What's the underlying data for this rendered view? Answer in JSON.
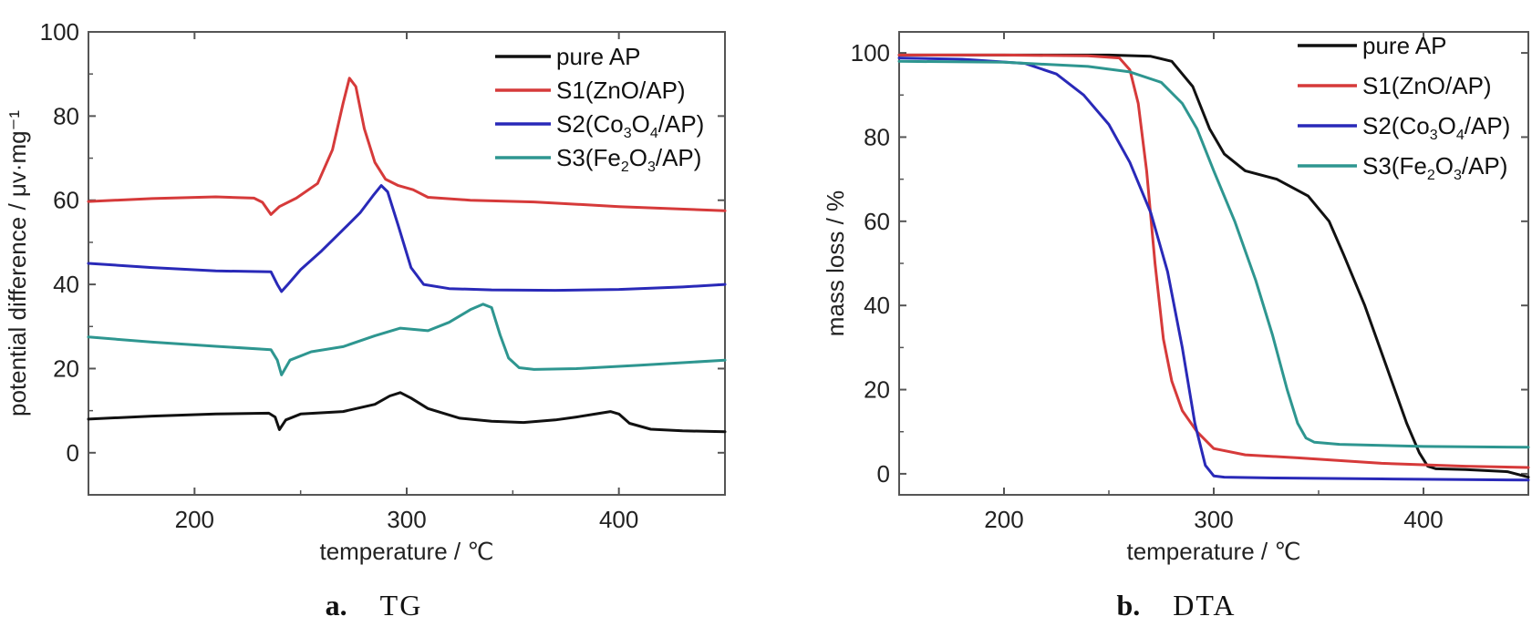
{
  "chart_data": [
    {
      "type": "line",
      "caption_letter": "a.",
      "caption_text": "TG",
      "xlabel": "temperature / ℃",
      "ylabel": "potential difference / μv·mg⁻¹",
      "xlim": [
        150,
        450
      ],
      "ylim": [
        -10,
        100
      ],
      "xticks": [
        200,
        300,
        400
      ],
      "yticks": [
        0,
        20,
        40,
        60,
        80,
        100
      ],
      "grid": false,
      "legend_position": "top-right",
      "series": [
        {
          "name": "pure AP",
          "legend_base": "pure AP",
          "legend_sub": [],
          "color": "#111111",
          "x": [
            150,
            180,
            210,
            235,
            238,
            240,
            243,
            250,
            270,
            285,
            292,
            297,
            302,
            310,
            325,
            340,
            355,
            370,
            380,
            390,
            396,
            400,
            405,
            415,
            430,
            450
          ],
          "y": [
            8,
            8.7,
            9.2,
            9.4,
            8.5,
            5.5,
            7.8,
            9.2,
            9.8,
            11.5,
            13.5,
            14.3,
            13,
            10.5,
            8.2,
            7.5,
            7.2,
            7.8,
            8.5,
            9.3,
            9.8,
            9.2,
            7,
            5.6,
            5.2,
            5
          ]
        },
        {
          "name": "S1(ZnO/AP)",
          "legend_base": "S1(ZnO/AP)",
          "legend_sub": [],
          "color": "#d63a3a",
          "x": [
            150,
            180,
            210,
            228,
            232,
            236,
            240,
            248,
            258,
            265,
            270,
            273,
            276,
            280,
            285,
            290,
            296,
            303,
            310,
            330,
            360,
            400,
            450
          ],
          "y": [
            59.7,
            60.4,
            60.8,
            60.5,
            59.5,
            56.6,
            58.5,
            60.5,
            64,
            72,
            83,
            89,
            87,
            77,
            69,
            65,
            63.5,
            62.5,
            60.7,
            60,
            59.6,
            58.5,
            57.5
          ]
        },
        {
          "name": "S2(Co3O4/AP)",
          "legend_base": "S2(Co",
          "legend_sub": [
            "3",
            "O",
            "4",
            "/AP)"
          ],
          "color": "#2929b8",
          "x": [
            150,
            180,
            210,
            236,
            239,
            241,
            244,
            250,
            260,
            270,
            278,
            284,
            288,
            291,
            296,
            302,
            308,
            320,
            340,
            370,
            400,
            430,
            450
          ],
          "y": [
            45,
            44,
            43.2,
            43,
            40,
            38.3,
            40,
            43.5,
            48,
            53,
            57,
            61,
            63.5,
            62,
            54,
            44,
            40,
            39,
            38.7,
            38.6,
            38.8,
            39.4,
            40
          ]
        },
        {
          "name": "S3(Fe2O3/AP)",
          "legend_base": "S3(Fe",
          "legend_sub": [
            "2",
            "O",
            "3",
            "/AP)"
          ],
          "color": "#2e9690",
          "x": [
            150,
            180,
            210,
            236,
            239,
            241,
            245,
            255,
            270,
            285,
            297,
            310,
            320,
            330,
            336,
            340,
            344,
            348,
            353,
            360,
            380,
            410,
            450
          ],
          "y": [
            27.5,
            26.3,
            25.3,
            24.5,
            22,
            18.5,
            22,
            24,
            25.2,
            27.8,
            29.6,
            29,
            31,
            34,
            35.3,
            34.5,
            28,
            22.5,
            20.2,
            19.8,
            20,
            20.8,
            22
          ]
        }
      ]
    },
    {
      "type": "line",
      "caption_letter": "b.",
      "caption_text": "DTA",
      "xlabel": "temperature / ℃",
      "ylabel": "mass loss / %",
      "xlim": [
        150,
        450
      ],
      "ylim": [
        -5,
        105
      ],
      "xticks": [
        200,
        300,
        400
      ],
      "yticks": [
        0,
        20,
        40,
        60,
        80,
        100
      ],
      "grid": false,
      "legend_position": "top-right",
      "series": [
        {
          "name": "pure AP",
          "legend_base": "pure AP",
          "legend_sub": [],
          "color": "#111111",
          "x": [
            150,
            200,
            250,
            270,
            280,
            290,
            298,
            305,
            315,
            330,
            345,
            355,
            362,
            372,
            382,
            392,
            398,
            402,
            406,
            420,
            440,
            450
          ],
          "y": [
            99.5,
            99.5,
            99.5,
            99.2,
            98,
            92,
            82,
            76,
            72,
            70,
            66,
            60,
            52,
            40,
            26,
            12,
            5,
            1.8,
            1.2,
            1,
            0.5,
            -0.8
          ]
        },
        {
          "name": "S1(ZnO/AP)",
          "legend_base": "S1(ZnO/AP)",
          "legend_sub": [],
          "color": "#d63a3a",
          "x": [
            150,
            200,
            240,
            255,
            260,
            264,
            268,
            272,
            276,
            280,
            285,
            292,
            300,
            315,
            340,
            380,
            420,
            450
          ],
          "y": [
            99.5,
            99.5,
            99.3,
            98.8,
            96,
            88,
            72,
            50,
            32,
            22,
            15,
            10,
            6,
            4.5,
            3.8,
            2.5,
            1.8,
            1.5
          ]
        },
        {
          "name": "S2(Co3O4/AP)",
          "legend_base": "S2(Co",
          "legend_sub": [
            "3",
            "O",
            "4",
            "/AP)"
          ],
          "color": "#2929b8",
          "x": [
            150,
            180,
            210,
            225,
            238,
            250,
            260,
            270,
            278,
            285,
            291,
            296,
            300,
            305,
            330,
            380,
            450
          ],
          "y": [
            98.8,
            98.5,
            97.5,
            95,
            90,
            83,
            74,
            62,
            48,
            30,
            12,
            2,
            -0.5,
            -0.8,
            -1,
            -1.2,
            -1.5
          ]
        },
        {
          "name": "S3(Fe2O3/AP)",
          "legend_base": "S3(Fe",
          "legend_sub": [
            "2",
            "O",
            "3",
            "/AP)"
          ],
          "color": "#2e9690",
          "x": [
            150,
            200,
            240,
            260,
            275,
            285,
            292,
            300,
            310,
            320,
            328,
            335,
            340,
            344,
            348,
            360,
            400,
            450
          ],
          "y": [
            98,
            97.8,
            96.8,
            95.5,
            93,
            88,
            82,
            72,
            60,
            46,
            33,
            20,
            12,
            8.5,
            7.5,
            7,
            6.5,
            6.3
          ]
        }
      ]
    }
  ]
}
